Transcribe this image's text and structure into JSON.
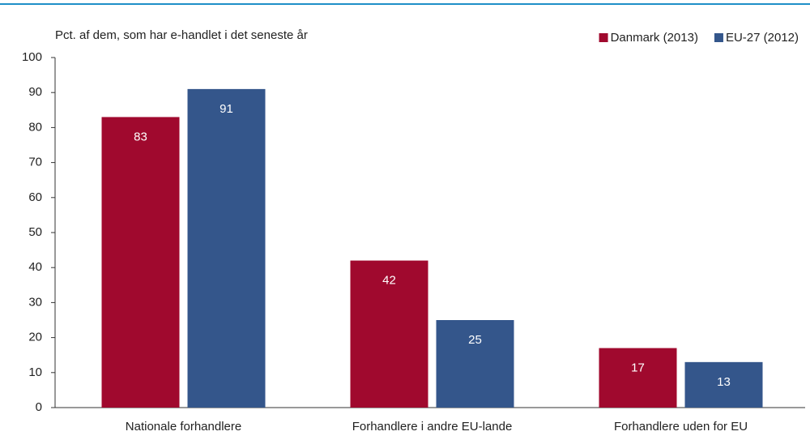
{
  "chart_data": {
    "type": "bar",
    "y_axis_label": "Pct. af dem, som har e-handlet i det seneste år",
    "categories": [
      "Nationale forhandlere",
      "Forhandlere i andre EU-lande",
      "Forhandlere uden for EU"
    ],
    "series": [
      {
        "name": "Danmark (2013)",
        "color": "#a0092e",
        "values": [
          83,
          42,
          17
        ]
      },
      {
        "name": "EU-27 (2012)",
        "color": "#34568b",
        "values": [
          91,
          25,
          13
        ]
      }
    ],
    "ylim": [
      0,
      100
    ],
    "yticks": [
      0,
      10,
      20,
      30,
      40,
      50,
      60,
      70,
      80,
      90,
      100
    ],
    "legend": "top-right",
    "grid": false
  }
}
